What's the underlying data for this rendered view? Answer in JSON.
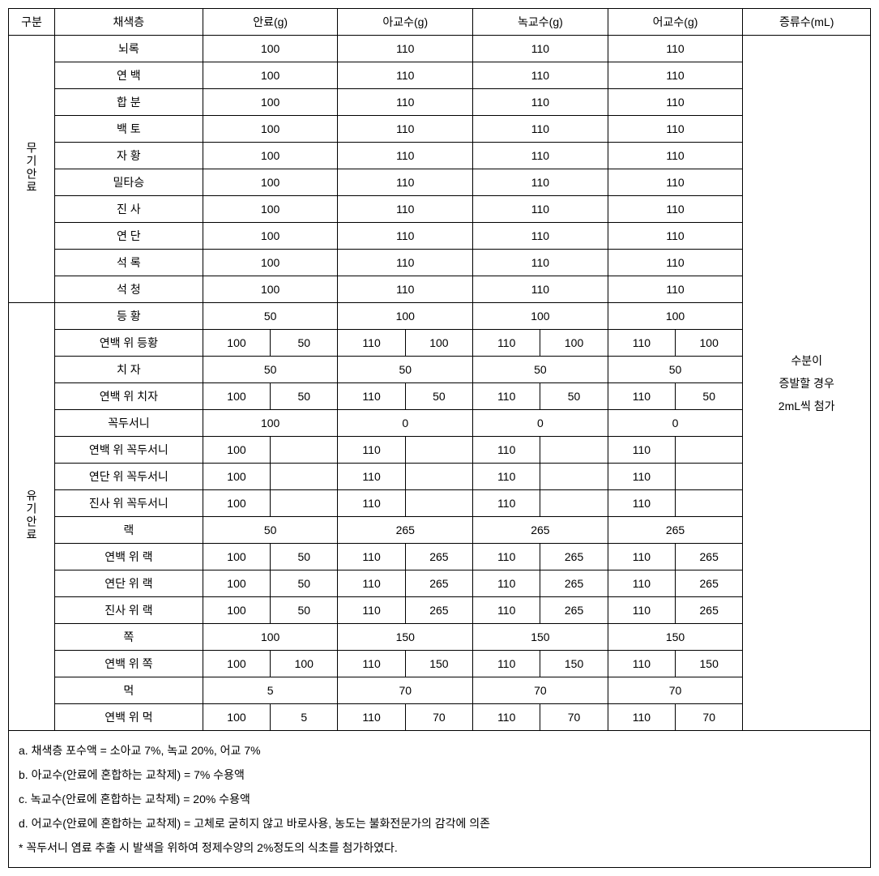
{
  "headers": {
    "division": "구분",
    "color_layer": "채색층",
    "pigment": "안료(g)",
    "glue1": "아교수(g)",
    "glue2": "녹교수(g)",
    "glue3": "어교수(g)",
    "water": "증류수(mL)"
  },
  "cat1": "무기안료",
  "cat2": "유기안료",
  "inorganic": [
    {
      "name": "뇌록",
      "v": [
        "100",
        "110",
        "110",
        "110"
      ]
    },
    {
      "name": "연 백",
      "v": [
        "100",
        "110",
        "110",
        "110"
      ]
    },
    {
      "name": "합 분",
      "v": [
        "100",
        "110",
        "110",
        "110"
      ]
    },
    {
      "name": "백 토",
      "v": [
        "100",
        "110",
        "110",
        "110"
      ]
    },
    {
      "name": "자 황",
      "v": [
        "100",
        "110",
        "110",
        "110"
      ]
    },
    {
      "name": "밀타승",
      "v": [
        "100",
        "110",
        "110",
        "110"
      ]
    },
    {
      "name": "진 사",
      "v": [
        "100",
        "110",
        "110",
        "110"
      ]
    },
    {
      "name": "연 단",
      "v": [
        "100",
        "110",
        "110",
        "110"
      ]
    },
    {
      "name": "석 록",
      "v": [
        "100",
        "110",
        "110",
        "110"
      ]
    },
    {
      "name": "석 청",
      "v": [
        "100",
        "110",
        "110",
        "110"
      ]
    }
  ],
  "organic": [
    {
      "name": "등 황",
      "type": "single",
      "v": [
        "50",
        "100",
        "100",
        "100"
      ]
    },
    {
      "name": "연백 위 등황",
      "type": "double",
      "v": [
        [
          "100",
          "50"
        ],
        [
          "110",
          "100"
        ],
        [
          "110",
          "100"
        ],
        [
          "110",
          "100"
        ]
      ]
    },
    {
      "name": "치 자",
      "type": "single",
      "v": [
        "50",
        "50",
        "50",
        "50"
      ]
    },
    {
      "name": "연백 위 치자",
      "type": "double",
      "v": [
        [
          "100",
          "50"
        ],
        [
          "110",
          "50"
        ],
        [
          "110",
          "50"
        ],
        [
          "110",
          "50"
        ]
      ]
    },
    {
      "name": "꼭두서니",
      "type": "single",
      "v": [
        "100",
        "0",
        "0",
        "0"
      ]
    },
    {
      "name": "연백 위 꼭두서니",
      "type": "double",
      "v": [
        [
          "100",
          ""
        ],
        [
          "110",
          ""
        ],
        [
          "110",
          ""
        ],
        [
          "110",
          ""
        ]
      ]
    },
    {
      "name": "연단 위 꼭두서니",
      "type": "double",
      "v": [
        [
          "100",
          ""
        ],
        [
          "110",
          ""
        ],
        [
          "110",
          ""
        ],
        [
          "110",
          ""
        ]
      ]
    },
    {
      "name": "진사 위 꼭두서니",
      "type": "double",
      "v": [
        [
          "100",
          ""
        ],
        [
          "110",
          ""
        ],
        [
          "110",
          ""
        ],
        [
          "110",
          ""
        ]
      ]
    },
    {
      "name": "랙",
      "type": "single",
      "v": [
        "50",
        "265",
        "265",
        "265"
      ]
    },
    {
      "name": "연백 위 랙",
      "type": "double",
      "v": [
        [
          "100",
          "50"
        ],
        [
          "110",
          "265"
        ],
        [
          "110",
          "265"
        ],
        [
          "110",
          "265"
        ]
      ]
    },
    {
      "name": "연단 위 랙",
      "type": "double",
      "v": [
        [
          "100",
          "50"
        ],
        [
          "110",
          "265"
        ],
        [
          "110",
          "265"
        ],
        [
          "110",
          "265"
        ]
      ]
    },
    {
      "name": "진사 위 랙",
      "type": "double",
      "v": [
        [
          "100",
          "50"
        ],
        [
          "110",
          "265"
        ],
        [
          "110",
          "265"
        ],
        [
          "110",
          "265"
        ]
      ]
    },
    {
      "name": "쪽",
      "type": "single",
      "v": [
        "100",
        "150",
        "150",
        "150"
      ]
    },
    {
      "name": "연백 위 쪽",
      "type": "double",
      "v": [
        [
          "100",
          "100"
        ],
        [
          "110",
          "150"
        ],
        [
          "110",
          "150"
        ],
        [
          "110",
          "150"
        ]
      ]
    },
    {
      "name": "먹",
      "type": "single",
      "v": [
        "5",
        "70",
        "70",
        "70"
      ]
    },
    {
      "name": "연백 위 먹",
      "type": "double",
      "v": [
        [
          "100",
          "5"
        ],
        [
          "110",
          "70"
        ],
        [
          "110",
          "70"
        ],
        [
          "110",
          "70"
        ]
      ]
    }
  ],
  "water_note": {
    "l1": "수분이",
    "l2": "증발할 경우",
    "l3": "2mL씩 첨가"
  },
  "notes": {
    "a": "a. 채색층 포수액 = 소아교 7%, 녹교 20%, 어교 7%",
    "b": "b. 아교수(안료에 혼합하는 교착제) = 7% 수용액",
    "c": "c. 녹교수(안료에 혼합하는 교착제) = 20% 수용액",
    "d": "d. 어교수(안료에 혼합하는 교착제) = 고체로 굳히지 않고 바로사용, 농도는 불화전문가의 감각에 의존",
    "star": "* 꼭두서니 염료 추출 시 발색을 위하여 정제수양의 2%정도의 식초를 첨가하였다."
  }
}
